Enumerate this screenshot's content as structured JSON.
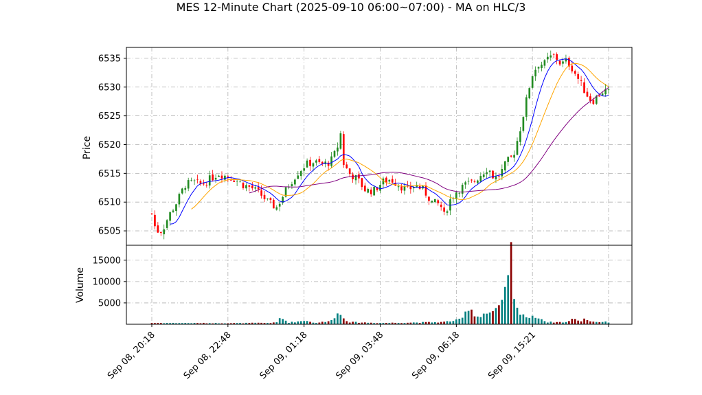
{
  "chart_data": {
    "type": "candlestick",
    "title": "MES 12-Minute Chart (2025-09-10 06:00~07:00) - MA on HLC/3",
    "price_panel": {
      "ylabel": "Price",
      "ylim": [
        6502.5,
        6536.9
      ],
      "yticks": [
        6505,
        6510,
        6515,
        6520,
        6525,
        6530,
        6535
      ],
      "grid": true
    },
    "volume_panel": {
      "ylabel": "Volume",
      "ylim": [
        0,
        18500
      ],
      "yticks": [
        5000,
        10000,
        15000
      ],
      "grid": true
    },
    "x_axis": {
      "tick_labels": [
        "Sep 08, 20:18",
        "Sep 08, 22:48",
        "Sep 09, 01:18",
        "Sep 09, 03:48",
        "Sep 09, 06:18",
        "Sep 09, 15:21",
        ""
      ],
      "tick_bar_index": [
        0,
        25,
        50,
        75,
        100,
        125,
        150
      ],
      "bar_count": 151
    },
    "close_anchors": [
      [
        0,
        6508
      ],
      [
        2,
        6505
      ],
      [
        5,
        6505
      ],
      [
        8,
        6507.5
      ],
      [
        12,
        6510
      ],
      [
        16,
        6513
      ],
      [
        20,
        6513.5
      ],
      [
        24,
        6513
      ],
      [
        28,
        6514
      ],
      [
        32,
        6515
      ],
      [
        36,
        6514.5
      ],
      [
        40,
        6514
      ],
      [
        44,
        6513
      ],
      [
        48,
        6512.5
      ],
      [
        52,
        6511.5
      ],
      [
        56,
        6510
      ],
      [
        60,
        6509
      ],
      [
        63,
        6511
      ],
      [
        66,
        6513
      ],
      [
        70,
        6515
      ],
      [
        74,
        6516.5
      ],
      [
        78,
        6517
      ],
      [
        82,
        6516.5
      ],
      [
        86,
        6517
      ],
      [
        89,
        6519
      ],
      [
        91,
        6522
      ],
      [
        92,
        6517
      ],
      [
        95,
        6515
      ],
      [
        99,
        6514
      ],
      [
        103,
        6512
      ],
      [
        107,
        6512
      ],
      [
        111,
        6513.5
      ],
      [
        115,
        6514
      ],
      [
        119,
        6513
      ],
      [
        123,
        6512
      ],
      [
        127,
        6513
      ],
      [
        131,
        6512
      ],
      [
        135,
        6510
      ],
      [
        139,
        6509.5
      ],
      [
        141,
        6507.5
      ],
      [
        143,
        6510
      ],
      [
        147,
        6512
      ],
      [
        151,
        6513
      ],
      [
        155,
        6513.5
      ],
      [
        159,
        6515
      ],
      [
        162,
        6516
      ],
      [
        165,
        6514
      ],
      [
        168,
        6515
      ],
      [
        171,
        6517
      ],
      [
        174,
        6518
      ],
      [
        177,
        6522
      ],
      [
        180,
        6527
      ],
      [
        183,
        6532
      ],
      [
        186,
        6534
      ],
      [
        189,
        6534
      ],
      [
        191,
        6535
      ],
      [
        194,
        6535.5
      ],
      [
        197,
        6534
      ],
      [
        200,
        6534.5
      ],
      [
        203,
        6533
      ],
      [
        206,
        6531
      ],
      [
        209,
        6529
      ],
      [
        212,
        6527.5
      ],
      [
        215,
        6528.5
      ],
      [
        218,
        6529.5
      ],
      [
        220,
        6529
      ]
    ],
    "bar_index_scale": 0.6818,
    "volume_anchors": [
      [
        0,
        300
      ],
      [
        40,
        250
      ],
      [
        60,
        350
      ],
      [
        62,
        1600
      ],
      [
        66,
        400
      ],
      [
        75,
        900
      ],
      [
        78,
        300
      ],
      [
        82,
        500
      ],
      [
        85,
        600
      ],
      [
        90,
        2600
      ],
      [
        95,
        500
      ],
      [
        110,
        300
      ],
      [
        140,
        500
      ],
      [
        148,
        1000
      ],
      [
        150,
        1600
      ],
      [
        153,
        4500
      ],
      [
        156,
        1600
      ],
      [
        160,
        2500
      ],
      [
        164,
        2800
      ],
      [
        167,
        3500
      ],
      [
        170,
        6500
      ],
      [
        172,
        14500
      ],
      [
        173,
        17500
      ],
      [
        174,
        6700
      ],
      [
        175,
        3800
      ],
      [
        178,
        2800
      ],
      [
        181,
        1500
      ],
      [
        186,
        1800
      ],
      [
        190,
        500
      ],
      [
        200,
        500
      ],
      [
        204,
        1500
      ],
      [
        206,
        400
      ],
      [
        208,
        1400
      ],
      [
        212,
        600
      ],
      [
        220,
        500
      ]
    ],
    "series": [
      {
        "name": "",
        "style": "ma-fast",
        "color": "#0000ff",
        "window": 7
      },
      {
        "name": "",
        "style": "ma-mid",
        "color": "#ffa500",
        "window": 14
      },
      {
        "name": "",
        "style": "ma-slow",
        "color": "#800080",
        "window": 33
      }
    ],
    "candle_colors": {
      "up": "#228B22",
      "down": "#ff0000"
    },
    "volume_colors": {
      "up": "#008080",
      "down": "#8B0000"
    }
  }
}
